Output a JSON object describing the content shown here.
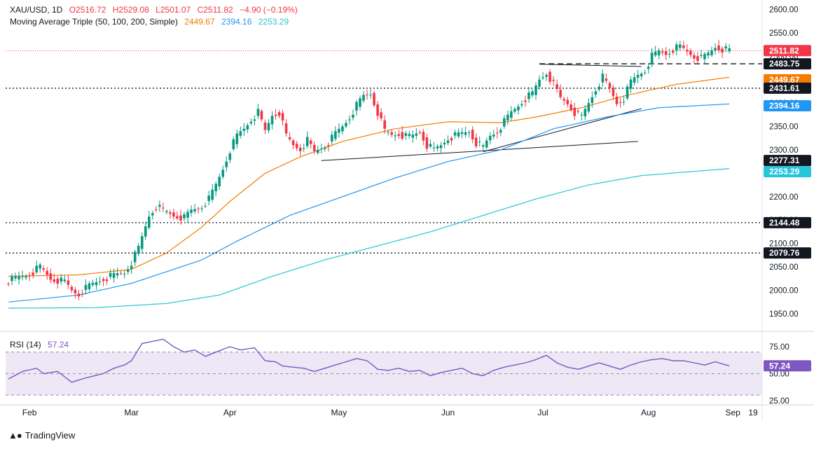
{
  "header": {
    "symbol": "XAU/USD, 1D",
    "open": "O2516.72",
    "high": "H2529.08",
    "low": "L2501.07",
    "close": "C2511.82",
    "change": "−4.90 (−0.19%)",
    "ma_title": "Moving Average Triple (50, 100, 200, Simple)",
    "ma50": "2449.67",
    "ma100": "2394.16",
    "ma200": "2253.29"
  },
  "rsi_header": {
    "title": "RSI (14)",
    "value": "57.24"
  },
  "brand": "TradingView",
  "colors": {
    "up": "#089981",
    "down": "#f23645",
    "ma50": "#f57c00",
    "ma100": "#2196f3",
    "ma200": "#26c6da",
    "rsi": "#7e57c2",
    "rsi_band": "#ede7f6",
    "text": "#131722"
  },
  "chart_data": [
    {
      "type": "candlestick",
      "title": "XAU/USD, 1D",
      "x_ticks": [
        "Feb",
        "Mar",
        "Apr",
        "May",
        "Jun",
        "Jul",
        "Aug",
        "Sep",
        "19"
      ],
      "y_ticks": [
        "2600.00",
        "2550.00",
        "2500.00",
        "2450.00",
        "2400.00",
        "2350.00",
        "2300.00",
        "2250.00",
        "2200.00",
        "2150.00",
        "2100.00",
        "2050.00",
        "2000.00",
        "1950.00"
      ],
      "ylim": [
        1920,
        2605
      ],
      "price_labels": [
        {
          "text": "2511.82",
          "value": 2511.82,
          "color": "#f23645"
        },
        {
          "text": "2483.75",
          "value": 2483.75,
          "color": "#131722"
        },
        {
          "text": "2449.67",
          "value": 2449.67,
          "color": "#f57c00"
        },
        {
          "text": "2431.61",
          "value": 2431.61,
          "color": "#131722"
        },
        {
          "text": "2394.16",
          "value": 2394.16,
          "color": "#2196f3"
        },
        {
          "text": "2277.31",
          "value": 2277.31,
          "color": "#131722"
        },
        {
          "text": "2253.29",
          "value": 2253.29,
          "color": "#26c6da"
        },
        {
          "text": "2144.48",
          "value": 2144.48,
          "color": "#131722"
        },
        {
          "text": "2079.76",
          "value": 2079.76,
          "color": "#131722"
        }
      ],
      "horizontal_levels": [
        2431.61,
        2144.48,
        2079.76
      ],
      "close_anchors": [
        [
          0,
          2020
        ],
        [
          6,
          2035
        ],
        [
          9,
          2050
        ],
        [
          12,
          2025
        ],
        [
          16,
          2018
        ],
        [
          18,
          2000
        ],
        [
          20,
          1992
        ],
        [
          23,
          2010
        ],
        [
          27,
          2025
        ],
        [
          30,
          2032
        ],
        [
          33,
          2038
        ],
        [
          35,
          2060
        ],
        [
          37,
          2090
        ],
        [
          40,
          2160
        ],
        [
          42,
          2180
        ],
        [
          44,
          2170
        ],
        [
          47,
          2160
        ],
        [
          50,
          2155
        ],
        [
          52,
          2170
        ],
        [
          55,
          2180
        ],
        [
          57,
          2195
        ],
        [
          59,
          2225
        ],
        [
          61,
          2260
        ],
        [
          63,
          2300
        ],
        [
          65,
          2330
        ],
        [
          67,
          2345
        ],
        [
          69,
          2365
        ],
        [
          71,
          2380
        ],
        [
          73,
          2340
        ],
        [
          75,
          2375
        ],
        [
          77,
          2380
        ],
        [
          79,
          2330
        ],
        [
          81,
          2310
        ],
        [
          83,
          2302
        ],
        [
          85,
          2320
        ],
        [
          87,
          2295
        ],
        [
          89,
          2305
        ],
        [
          91,
          2315
        ],
        [
          93,
          2335
        ],
        [
          95,
          2350
        ],
        [
          97,
          2370
        ],
        [
          99,
          2395
        ],
        [
          101,
          2415
        ],
        [
          103,
          2420
        ],
        [
          105,
          2380
        ],
        [
          107,
          2340
        ],
        [
          109,
          2332
        ],
        [
          111,
          2335
        ],
        [
          113,
          2328
        ],
        [
          115,
          2330
        ],
        [
          117,
          2340
        ],
        [
          119,
          2310
        ],
        [
          121,
          2300
        ],
        [
          123,
          2310
        ],
        [
          125,
          2325
        ],
        [
          127,
          2330
        ],
        [
          129,
          2335
        ],
        [
          131,
          2340
        ],
        [
          133,
          2315
        ],
        [
          135,
          2305
        ],
        [
          137,
          2330
        ],
        [
          139,
          2340
        ],
        [
          141,
          2360
        ],
        [
          143,
          2380
        ],
        [
          145,
          2395
        ],
        [
          147,
          2410
        ],
        [
          149,
          2420
        ],
        [
          151,
          2450
        ],
        [
          153,
          2465
        ],
        [
          155,
          2440
        ],
        [
          157,
          2410
        ],
        [
          159,
          2400
        ],
        [
          161,
          2380
        ],
        [
          163,
          2370
        ],
        [
          165,
          2400
        ],
        [
          167,
          2430
        ],
        [
          169,
          2455
        ],
        [
          171,
          2430
        ],
        [
          173,
          2400
        ],
        [
          175,
          2410
        ],
        [
          177,
          2445
        ],
        [
          179,
          2460
        ],
        [
          181,
          2470
        ],
        [
          183,
          2500
        ],
        [
          185,
          2510
        ],
        [
          187,
          2505
        ],
        [
          189,
          2515
        ],
        [
          191,
          2520
        ],
        [
          193,
          2510
        ],
        [
          195,
          2500
        ],
        [
          197,
          2495
        ],
        [
          199,
          2505
        ],
        [
          201,
          2520
        ],
        [
          203,
          2515
        ],
        [
          205,
          2511.82
        ]
      ],
      "ma50_anchors": [
        [
          0,
          2030
        ],
        [
          20,
          2033
        ],
        [
          35,
          2045
        ],
        [
          45,
          2080
        ],
        [
          55,
          2135
        ],
        [
          63,
          2190
        ],
        [
          73,
          2250
        ],
        [
          83,
          2285
        ],
        [
          95,
          2318
        ],
        [
          110,
          2345
        ],
        [
          125,
          2360
        ],
        [
          140,
          2358
        ],
        [
          150,
          2370
        ],
        [
          163,
          2390
        ],
        [
          175,
          2415
        ],
        [
          190,
          2440
        ],
        [
          205,
          2455
        ]
      ],
      "ma100_anchors": [
        [
          0,
          1975
        ],
        [
          20,
          1990
        ],
        [
          35,
          2015
        ],
        [
          45,
          2040
        ],
        [
          55,
          2065
        ],
        [
          65,
          2105
        ],
        [
          80,
          2160
        ],
        [
          95,
          2200
        ],
        [
          110,
          2240
        ],
        [
          125,
          2275
        ],
        [
          140,
          2300
        ],
        [
          155,
          2345
        ],
        [
          170,
          2370
        ],
        [
          185,
          2390
        ],
        [
          205,
          2398
        ]
      ],
      "ma200_anchors": [
        [
          0,
          1962
        ],
        [
          25,
          1963
        ],
        [
          45,
          1972
        ],
        [
          60,
          1990
        ],
        [
          75,
          2030
        ],
        [
          90,
          2065
        ],
        [
          105,
          2095
        ],
        [
          120,
          2125
        ],
        [
          135,
          2160
        ],
        [
          150,
          2195
        ],
        [
          165,
          2225
        ],
        [
          180,
          2245
        ],
        [
          205,
          2260
        ]
      ]
    },
    {
      "type": "line",
      "title": "RSI (14)",
      "y_ticks": [
        "75.00",
        "50.00",
        "25.00"
      ],
      "ylim": [
        20,
        85
      ],
      "band": [
        30,
        70
      ],
      "mid": 50,
      "series": [
        {
          "name": "RSI (14)",
          "anchors": [
            [
              0,
              45
            ],
            [
              4,
              52
            ],
            [
              8,
              55
            ],
            [
              10,
              50
            ],
            [
              14,
              52
            ],
            [
              18,
              42
            ],
            [
              22,
              46
            ],
            [
              27,
              50
            ],
            [
              30,
              55
            ],
            [
              33,
              58
            ],
            [
              35,
              62
            ],
            [
              38,
              78
            ],
            [
              41,
              80
            ],
            [
              44,
              82
            ],
            [
              47,
              75
            ],
            [
              50,
              70
            ],
            [
              53,
              72
            ],
            [
              56,
              66
            ],
            [
              59,
              70
            ],
            [
              63,
              75
            ],
            [
              66,
              72
            ],
            [
              70,
              74
            ],
            [
              73,
              62
            ],
            [
              76,
              61
            ],
            [
              78,
              57
            ],
            [
              81,
              56
            ],
            [
              84,
              55
            ],
            [
              87,
              52
            ],
            [
              90,
              55
            ],
            [
              93,
              58
            ],
            [
              96,
              61
            ],
            [
              99,
              64
            ],
            [
              102,
              62
            ],
            [
              105,
              54
            ],
            [
              108,
              53
            ],
            [
              111,
              55
            ],
            [
              114,
              52
            ],
            [
              117,
              53
            ],
            [
              120,
              48
            ],
            [
              123,
              51
            ],
            [
              126,
              53
            ],
            [
              129,
              55
            ],
            [
              132,
              50
            ],
            [
              135,
              48
            ],
            [
              138,
              53
            ],
            [
              141,
              56
            ],
            [
              144,
              58
            ],
            [
              147,
              60
            ],
            [
              150,
              63
            ],
            [
              153,
              67
            ],
            [
              156,
              60
            ],
            [
              159,
              56
            ],
            [
              162,
              54
            ],
            [
              165,
              57
            ],
            [
              168,
              60
            ],
            [
              171,
              57
            ],
            [
              174,
              54
            ],
            [
              177,
              58
            ],
            [
              180,
              61
            ],
            [
              183,
              63
            ],
            [
              186,
              64
            ],
            [
              189,
              62
            ],
            [
              192,
              62
            ],
            [
              195,
              60
            ],
            [
              198,
              58
            ],
            [
              201,
              61
            ],
            [
              203,
              59
            ],
            [
              205,
              57.24
            ]
          ]
        }
      ]
    }
  ]
}
